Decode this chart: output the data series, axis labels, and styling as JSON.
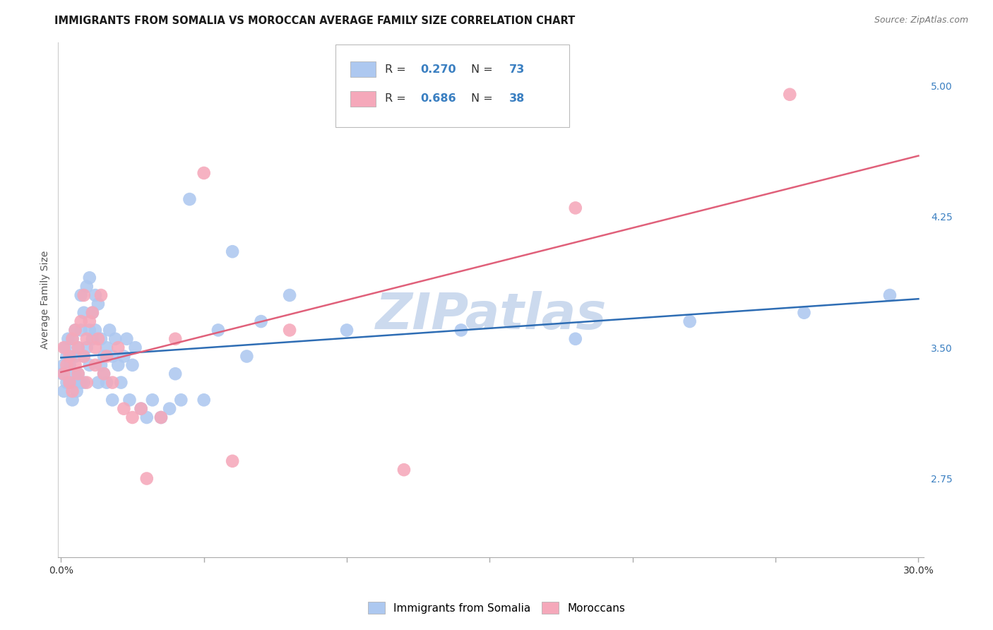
{
  "title": "IMMIGRANTS FROM SOMALIA VS MOROCCAN AVERAGE FAMILY SIZE CORRELATION CHART",
  "source": "Source: ZipAtlas.com",
  "ylabel": "Average Family Size",
  "xlim": [
    -0.001,
    0.302
  ],
  "ylim": [
    2.3,
    5.25
  ],
  "xticks": [
    0.0,
    0.05,
    0.1,
    0.15,
    0.2,
    0.25,
    0.3
  ],
  "xticklabels": [
    "0.0%",
    "",
    "",
    "",
    "",
    "",
    "30.0%"
  ],
  "yticks_right": [
    2.75,
    3.5,
    4.25,
    5.0
  ],
  "background_color": "#ffffff",
  "grid_color": "#d5d5d5",
  "watermark": "ZIPatlas",
  "watermark_color": "#ccdaee",
  "somalia_color_scatter": "#adc8f0",
  "somalia_color_line": "#2e6db4",
  "moroccan_color_scatter": "#f5a8ba",
  "moroccan_color_line": "#e0607a",
  "somalia_name": "Immigrants from Somalia",
  "moroccan_name": "Moroccans",
  "somalia_R": "0.270",
  "somalia_N": "73",
  "moroccan_R": "0.686",
  "moroccan_N": "38",
  "somalia_x": [
    0.0005,
    0.001,
    0.001,
    0.0015,
    0.002,
    0.002,
    0.0025,
    0.003,
    0.003,
    0.0035,
    0.004,
    0.004,
    0.0045,
    0.005,
    0.005,
    0.005,
    0.0055,
    0.006,
    0.006,
    0.007,
    0.007,
    0.007,
    0.008,
    0.008,
    0.008,
    0.009,
    0.009,
    0.01,
    0.01,
    0.01,
    0.011,
    0.011,
    0.012,
    0.012,
    0.013,
    0.013,
    0.014,
    0.014,
    0.015,
    0.015,
    0.016,
    0.016,
    0.017,
    0.018,
    0.018,
    0.019,
    0.02,
    0.021,
    0.022,
    0.023,
    0.024,
    0.025,
    0.026,
    0.028,
    0.03,
    0.032,
    0.035,
    0.038,
    0.04,
    0.042,
    0.045,
    0.05,
    0.055,
    0.06,
    0.065,
    0.07,
    0.08,
    0.1,
    0.14,
    0.18,
    0.22,
    0.26,
    0.29
  ],
  "somalia_y": [
    3.35,
    3.4,
    3.25,
    3.5,
    3.3,
    3.45,
    3.55,
    3.3,
    3.4,
    3.45,
    3.2,
    3.55,
    3.3,
    3.35,
    3.45,
    3.6,
    3.25,
    3.35,
    3.5,
    3.3,
    3.8,
    3.6,
    3.45,
    3.3,
    3.7,
    3.85,
    3.5,
    3.6,
    3.9,
    3.4,
    3.7,
    3.55,
    3.8,
    3.6,
    3.3,
    3.75,
    3.4,
    3.55,
    3.35,
    3.45,
    3.3,
    3.5,
    3.6,
    3.45,
    3.2,
    3.55,
    3.4,
    3.3,
    3.45,
    3.55,
    3.2,
    3.4,
    3.5,
    3.15,
    3.1,
    3.2,
    3.1,
    3.15,
    3.35,
    3.2,
    4.35,
    3.2,
    3.6,
    4.05,
    3.45,
    3.65,
    3.8,
    3.6,
    3.6,
    3.55,
    3.65,
    3.7,
    3.8
  ],
  "moroccan_x": [
    0.001,
    0.001,
    0.002,
    0.003,
    0.003,
    0.004,
    0.004,
    0.005,
    0.005,
    0.006,
    0.006,
    0.007,
    0.008,
    0.008,
    0.009,
    0.009,
    0.01,
    0.011,
    0.012,
    0.012,
    0.013,
    0.014,
    0.015,
    0.016,
    0.018,
    0.02,
    0.022,
    0.025,
    0.028,
    0.03,
    0.035,
    0.04,
    0.05,
    0.06,
    0.08,
    0.12,
    0.18,
    0.255
  ],
  "moroccan_y": [
    3.35,
    3.5,
    3.4,
    3.3,
    3.45,
    3.55,
    3.25,
    3.4,
    3.6,
    3.35,
    3.5,
    3.65,
    3.45,
    3.8,
    3.3,
    3.55,
    3.65,
    3.7,
    3.4,
    3.5,
    3.55,
    3.8,
    3.35,
    3.45,
    3.3,
    3.5,
    3.15,
    3.1,
    3.15,
    2.75,
    3.1,
    3.55,
    4.5,
    2.85,
    3.6,
    2.8,
    4.3,
    4.95
  ],
  "title_fontsize": 10.5,
  "tick_fontsize": 10,
  "legend_fontsize": 11.5
}
